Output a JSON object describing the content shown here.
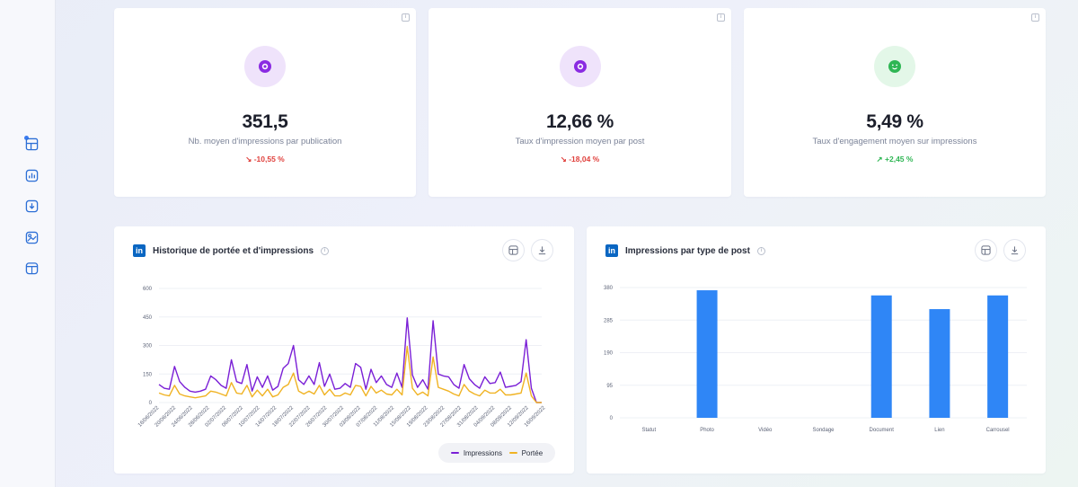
{
  "sidebar": {
    "items": [
      {
        "icon": "layout-icon"
      },
      {
        "icon": "bar-chart-icon"
      },
      {
        "icon": "download-icon"
      },
      {
        "icon": "image-chart-icon"
      },
      {
        "icon": "calendar-icon"
      }
    ]
  },
  "kpis": [
    {
      "value": "351,5",
      "label": "Nb. moyen d'impressions par publication",
      "delta": "↘ -10,55 %",
      "trend": "down",
      "icon": "eye-icon",
      "color": "#8a2be2"
    },
    {
      "value": "12,66 %",
      "label": "Taux d'impression moyen par post",
      "delta": "↘ -18,04 %",
      "trend": "down",
      "icon": "eye-icon",
      "color": "#8a2be2"
    },
    {
      "value": "5,49 %",
      "label": "Taux d'engagement moyen sur impressions",
      "delta": "↗ +2,45 %",
      "trend": "up",
      "icon": "smile-icon",
      "color": "#2fb654"
    }
  ],
  "line_card": {
    "logo": "in",
    "title": "Historique de portée et d'impressions",
    "legend": {
      "impressions": "Impressions",
      "portee": "Portée"
    }
  },
  "bar_card": {
    "logo": "in",
    "title": "Impressions par type de post"
  },
  "chart_data": [
    {
      "type": "line",
      "title": "Historique de portée et d'impressions",
      "ylim": [
        0,
        600
      ],
      "yticks": [
        "0",
        "150",
        "300",
        "450",
        "600"
      ],
      "x_tick_labels": [
        "16/06/2022",
        "20/06/2022",
        "24/06/2022",
        "28/06/2022",
        "02/07/2022",
        "06/07/2022",
        "10/07/2022",
        "14/07/2022",
        "18/07/2022",
        "22/07/2022",
        "26/07/2022",
        "30/07/2022",
        "03/08/2022",
        "07/08/2022",
        "11/08/2022",
        "15/08/2022",
        "19/08/2022",
        "23/08/2022",
        "27/08/2022",
        "31/08/2022",
        "04/09/2022",
        "08/09/2022",
        "12/09/2022",
        "16/09/2022"
      ],
      "colors": {
        "Impressions": "#7a1fd6",
        "Portée": "#f0b323"
      },
      "series": [
        {
          "name": "Impressions",
          "values": [
            95,
            75,
            70,
            190,
            110,
            80,
            60,
            55,
            60,
            70,
            140,
            120,
            90,
            75,
            225,
            110,
            100,
            200,
            60,
            135,
            80,
            140,
            65,
            85,
            180,
            205,
            300,
            120,
            95,
            140,
            95,
            210,
            85,
            150,
            70,
            75,
            100,
            80,
            205,
            185,
            70,
            175,
            105,
            140,
            95,
            80,
            155,
            80,
            445,
            145,
            80,
            120,
            70,
            430,
            150,
            140,
            135,
            95,
            75,
            200,
            125,
            95,
            75,
            135,
            100,
            105,
            160,
            80,
            85,
            90,
            110,
            330,
            75,
            0,
            0
          ]
        },
        {
          "name": "Portée",
          "values": [
            50,
            40,
            35,
            90,
            45,
            35,
            30,
            25,
            30,
            35,
            60,
            55,
            45,
            35,
            105,
            50,
            45,
            90,
            30,
            65,
            35,
            70,
            30,
            40,
            80,
            95,
            155,
            60,
            45,
            60,
            45,
            90,
            40,
            70,
            35,
            35,
            50,
            40,
            90,
            85,
            35,
            85,
            50,
            65,
            45,
            40,
            70,
            40,
            295,
            75,
            40,
            55,
            35,
            240,
            80,
            70,
            60,
            45,
            35,
            95,
            60,
            45,
            35,
            65,
            50,
            50,
            70,
            40,
            40,
            45,
            50,
            155,
            35,
            0,
            0
          ]
        }
      ]
    },
    {
      "type": "bar",
      "title": "Impressions par type de post",
      "categories": [
        "Statut",
        "Photo",
        "Vidéo",
        "Sondage",
        "Document",
        "Lien",
        "Carrousel"
      ],
      "values": [
        0,
        372,
        0,
        0,
        357,
        317,
        357
      ],
      "ylim": [
        0,
        380
      ],
      "yticks": [
        "0",
        "95",
        "190",
        "285",
        "380"
      ],
      "color": "#2f86f6"
    }
  ]
}
